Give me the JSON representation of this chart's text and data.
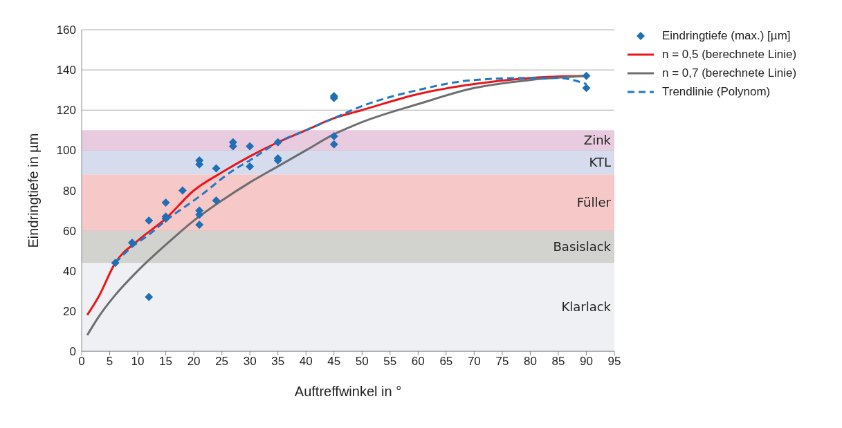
{
  "chart_data": {
    "type": "scatter",
    "xlabel": "Auftreffwinkel in °",
    "ylabel": "Eindringtiefe in µm",
    "xlim": [
      0,
      95
    ],
    "xticks": [
      0,
      5,
      10,
      15,
      20,
      25,
      30,
      35,
      40,
      45,
      50,
      55,
      60,
      65,
      70,
      75,
      80,
      85,
      90,
      95
    ],
    "ylim": [
      0,
      160
    ],
    "yticks": [
      0,
      20,
      40,
      60,
      80,
      100,
      120,
      140,
      160
    ],
    "grid": "y",
    "legend": "top right",
    "bands": [
      {
        "axis": "y",
        "from": 0,
        "to": 44,
        "label": "Klarlack",
        "color": "#eef0f4"
      },
      {
        "axis": "y",
        "from": 44,
        "to": 60,
        "label": "Basislack",
        "color": "#d2d2cf"
      },
      {
        "axis": "y",
        "from": 60,
        "to": 88,
        "label": "Füller",
        "color": "#f7c8c8"
      },
      {
        "axis": "y",
        "from": 88,
        "to": 100,
        "label": "KTL",
        "color": "#d6dcee"
      },
      {
        "axis": "y",
        "from": 100,
        "to": 110,
        "label": "Zink",
        "color": "#e9cbe0"
      }
    ],
    "series": [
      {
        "name": "Eindringtiefe (max.) [µm]",
        "color": "#1f6fb4",
        "marker": "diamond",
        "x": [
          6,
          9,
          12,
          12,
          15,
          15,
          15,
          18,
          21,
          21,
          21,
          21,
          21,
          24,
          24,
          27,
          27,
          30,
          30,
          35,
          35,
          35,
          45,
          45,
          45,
          45,
          90,
          90
        ],
        "values": [
          44,
          54,
          65,
          27,
          74,
          67,
          66,
          80,
          95,
          93,
          70,
          68,
          63,
          91,
          75,
          104,
          102,
          102,
          92,
          104,
          96,
          95,
          127,
          126,
          107,
          103,
          137,
          131
        ]
      },
      {
        "name": "n = 0,5 (berechnete Linie)",
        "type": "line",
        "color": "#e8161b",
        "line_style": "solid",
        "marker": "none",
        "x": [
          1,
          3,
          6,
          10,
          15,
          20,
          25,
          30,
          35,
          40,
          45,
          50,
          60,
          70,
          80,
          90
        ],
        "values": [
          18,
          27,
          44,
          55,
          66,
          80,
          89,
          97,
          104,
          110,
          116,
          120,
          128,
          133,
          136,
          137
        ]
      },
      {
        "name": "n = 0,7 (berechnete Linie)",
        "type": "line",
        "color": "#6d6e70",
        "line_style": "solid",
        "marker": "none",
        "x": [
          1,
          3,
          6,
          10,
          15,
          20,
          25,
          30,
          35,
          40,
          45,
          50,
          60,
          70,
          80,
          90
        ],
        "values": [
          8,
          17,
          28,
          40,
          53,
          65,
          75,
          84,
          92,
          100,
          108,
          114,
          123,
          131,
          135,
          137
        ]
      },
      {
        "name": "Trendlinie (Polynom)",
        "type": "line",
        "color": "#1f7ac4",
        "line_style": "dashed",
        "marker": "none",
        "x": [
          6,
          9,
          12,
          15,
          21,
          27,
          30,
          35,
          40,
          45,
          50,
          60,
          70,
          80,
          85,
          90
        ],
        "values": [
          44,
          52,
          58,
          65,
          77,
          90,
          95,
          104,
          110,
          116,
          122,
          130,
          135,
          136,
          136,
          133
        ]
      }
    ]
  }
}
